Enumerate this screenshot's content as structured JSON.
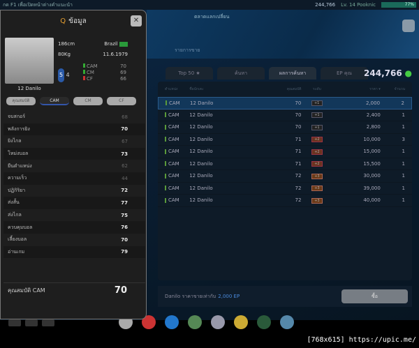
{
  "topbar": {
    "hint": "กด F1 เพื่อเปิดหน้าต่างคำแนะนำ",
    "ep": "244,766",
    "level": "Lv. 14 Pooknic",
    "progress": "77%"
  },
  "header": {
    "title": "ตลาดแลกเปลี่ยน",
    "subtitle": "รายการขาย"
  },
  "tabs": [
    {
      "label": "Top 50 ★"
    },
    {
      "label": "ค้นหา"
    },
    {
      "label": "ผลการค้นหา"
    },
    {
      "label": "EP คุณ"
    }
  ],
  "balance": "244,766",
  "table": {
    "headers": [
      "ตำแหน่ง",
      "ชื่อนักเตะ",
      "คุณสมบัติ",
      "ระดับ",
      "ราคา ▾",
      "จำนวน"
    ],
    "rows": [
      {
        "pos": "CAM",
        "name": "12 Danilo",
        "ovr": "70",
        "level": "+1",
        "price": "2,000",
        "qty": "2"
      },
      {
        "pos": "CAM",
        "name": "12 Danilo",
        "ovr": "70",
        "level": "+1",
        "price": "2,400",
        "qty": "1"
      },
      {
        "pos": "CAM",
        "name": "12 Danilo",
        "ovr": "70",
        "level": "+1",
        "price": "2,800",
        "qty": "1"
      },
      {
        "pos": "CAM",
        "name": "12 Danilo",
        "ovr": "71",
        "level": "+2",
        "price": "10,000",
        "qty": "3"
      },
      {
        "pos": "CAM",
        "name": "12 Danilo",
        "ovr": "71",
        "level": "+2",
        "price": "15,000",
        "qty": "1"
      },
      {
        "pos": "CAM",
        "name": "12 Danilo",
        "ovr": "71",
        "level": "+2",
        "price": "15,500",
        "qty": "1"
      },
      {
        "pos": "CAM",
        "name": "12 Danilo",
        "ovr": "72",
        "level": "+3",
        "price": "30,000",
        "qty": "1"
      },
      {
        "pos": "CAM",
        "name": "12 Danilo",
        "ovr": "72",
        "level": "+3",
        "price": "39,000",
        "qty": "1"
      },
      {
        "pos": "CAM",
        "name": "12 Danilo",
        "ovr": "72",
        "level": "+3",
        "price": "40,000",
        "qty": "1"
      }
    ]
  },
  "footer": {
    "text": "Danilo ราคาขายเท่ากับ",
    "price": "2,000 EP",
    "buy": "ซื้อ"
  },
  "watermark": "[768x615] https://upic.me/",
  "popup": {
    "title": "ข้อมูล",
    "close": "✕",
    "player": {
      "name": "12 Danilo",
      "height": "186cm",
      "weight": "80Kg",
      "nation": "Brazil",
      "dob": "11.6.1979",
      "skill": "5",
      "weakfoot": "4"
    },
    "positions": [
      {
        "pos": "CAM",
        "val": "70",
        "color": "#33aa33"
      },
      {
        "pos": "CM",
        "val": "69",
        "color": "#33aa33"
      },
      {
        "pos": "CF",
        "val": "66",
        "color": "#cc3333"
      }
    ],
    "tabs": [
      "คุณสมบัติ",
      "CAM",
      "CM",
      "CF"
    ],
    "stats": [
      {
        "label": "จบสกอร์",
        "value": "68",
        "dim": true
      },
      {
        "label": "พลังการยิง",
        "value": "70"
      },
      {
        "label": "ยิงไกล",
        "value": "67",
        "dim": true
      },
      {
        "label": "โหม่งบอล",
        "value": "73"
      },
      {
        "label": "ยืนตำแหน่ง",
        "value": "62",
        "dim": true
      },
      {
        "label": "ความเร็ว",
        "value": "44",
        "dim": true
      },
      {
        "label": "ปฏิกิริยา",
        "value": "72"
      },
      {
        "label": "ส่งสั้น",
        "value": "77"
      },
      {
        "label": "ส่งไกล",
        "value": "75"
      },
      {
        "label": "ควบคุมบอล",
        "value": "76"
      },
      {
        "label": "เลี้ยงบอล",
        "value": "70"
      },
      {
        "label": "อ่านเกม",
        "value": "79"
      }
    ],
    "summary": {
      "label": "คุณสมบัติ CAM",
      "value": "70"
    }
  }
}
